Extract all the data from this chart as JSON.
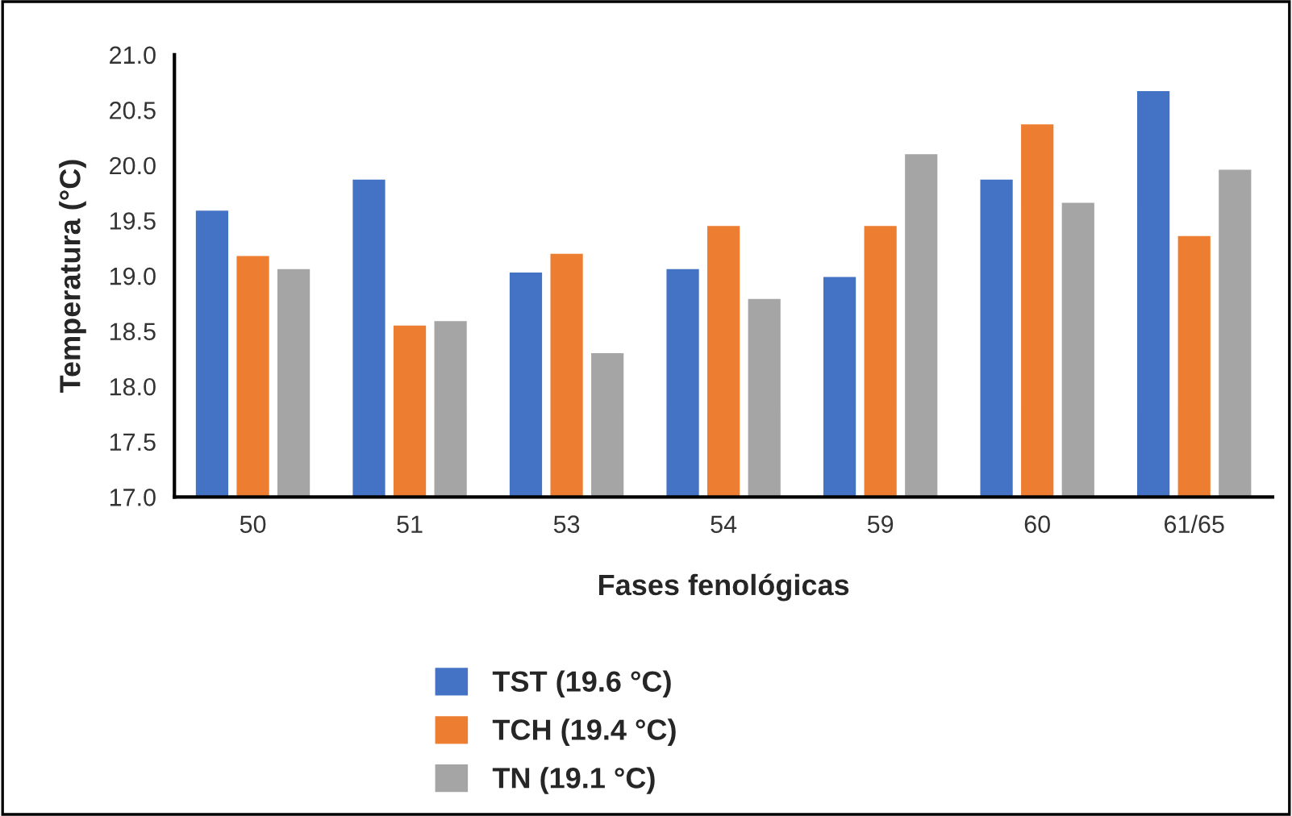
{
  "chart_data": {
    "type": "bar",
    "xlabel": "Fases fenológicas",
    "ylabel": "Temperatura (°C)",
    "categories": [
      "50",
      "51",
      "53",
      "54",
      "59",
      "60",
      "61/65"
    ],
    "series": [
      {
        "name": "TST (19.6 °C)",
        "color": "#4472c4",
        "values": [
          19.6,
          19.88,
          19.04,
          19.07,
          19.0,
          19.88,
          20.68
        ]
      },
      {
        "name": "TCH (19.4 °C)",
        "color": "#ed7d31",
        "values": [
          19.19,
          18.56,
          19.21,
          19.46,
          19.46,
          20.38,
          19.37
        ]
      },
      {
        "name": "TN (19.1 °C)",
        "color": "#a5a5a5",
        "values": [
          19.07,
          18.6,
          18.31,
          18.8,
          20.11,
          19.67,
          19.97
        ]
      }
    ],
    "ylim": [
      17.0,
      21.0
    ],
    "yticks": [
      {
        "value": 17,
        "label": "17.0"
      },
      {
        "value": 17.5,
        "label": "17.5"
      },
      {
        "value": 18,
        "label": "18.0"
      },
      {
        "value": 18.5,
        "label": "18.5"
      },
      {
        "value": 19,
        "label": "19.0"
      },
      {
        "value": 19.5,
        "label": "19.5"
      },
      {
        "value": 20,
        "label": "20.0"
      },
      {
        "value": 20.5,
        "label": "20.5"
      },
      {
        "value": 21,
        "label": "21.0"
      }
    ],
    "grid": false,
    "legend": "bottom"
  }
}
